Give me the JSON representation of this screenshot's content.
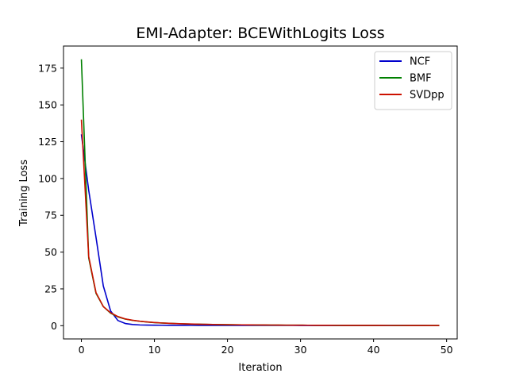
{
  "chart_data": {
    "type": "line",
    "title": "EMI-Adapter: BCEWithLogits Loss",
    "xlabel": "Iteration",
    "ylabel": "Training Loss",
    "xlim": [
      -2.45,
      51.45
    ],
    "ylim": [
      -9.0,
      190.0
    ],
    "xticks": [
      0,
      10,
      20,
      30,
      40,
      50
    ],
    "yticks": [
      0,
      25,
      50,
      75,
      100,
      125,
      150,
      175
    ],
    "grid": false,
    "legend_position": "top-right",
    "x": [
      0,
      1,
      2,
      3,
      4,
      5,
      6,
      7,
      8,
      9,
      10,
      11,
      12,
      13,
      14,
      15,
      16,
      17,
      18,
      19,
      20,
      21,
      22,
      23,
      24,
      25,
      26,
      27,
      28,
      29,
      30,
      31,
      32,
      33,
      34,
      35,
      36,
      37,
      38,
      39,
      40,
      41,
      42,
      43,
      44,
      45,
      46,
      47,
      48,
      49
    ],
    "series": [
      {
        "name": "NCF",
        "color": "#0000cc",
        "values": [
          130,
          92,
          60,
          27,
          10,
          3.5,
          1.5,
          0.8,
          0.5,
          0.4,
          0.35,
          0.3,
          0.28,
          0.26,
          0.25,
          0.24,
          0.23,
          0.22,
          0.21,
          0.2,
          0.2,
          0.19,
          0.19,
          0.18,
          0.18,
          0.17,
          0.17,
          0.16,
          0.16,
          0.16,
          0.15,
          0.15,
          0.15,
          0.14,
          0.14,
          0.14,
          0.13,
          0.13,
          0.13,
          0.13,
          0.12,
          0.12,
          0.12,
          0.12,
          0.11,
          0.11,
          0.11,
          0.11,
          0.1,
          0.1
        ]
      },
      {
        "name": "BMF",
        "color": "#008000",
        "values": [
          181,
          46,
          22,
          13,
          8.5,
          6,
          4.5,
          3.6,
          3,
          2.5,
          2.1,
          1.8,
          1.6,
          1.4,
          1.25,
          1.1,
          1,
          0.9,
          0.82,
          0.75,
          0.68,
          0.62,
          0.57,
          0.53,
          0.49,
          0.45,
          0.42,
          0.39,
          0.36,
          0.34,
          0.32,
          0.3,
          0.28,
          0.26,
          0.25,
          0.23,
          0.22,
          0.21,
          0.2,
          0.19,
          0.18,
          0.17,
          0.16,
          0.15,
          0.15,
          0.14,
          0.13,
          0.13,
          0.12,
          0.12
        ]
      },
      {
        "name": "SVDpp",
        "color": "#cc1100",
        "values": [
          140,
          47,
          22.5,
          13,
          8.8,
          6.2,
          4.6,
          3.7,
          3.05,
          2.55,
          2.15,
          1.85,
          1.62,
          1.42,
          1.27,
          1.12,
          1.02,
          0.92,
          0.84,
          0.77,
          0.7,
          0.64,
          0.58,
          0.54,
          0.5,
          0.46,
          0.43,
          0.4,
          0.37,
          0.35,
          0.33,
          0.31,
          0.29,
          0.27,
          0.26,
          0.24,
          0.23,
          0.22,
          0.21,
          0.2,
          0.19,
          0.18,
          0.17,
          0.16,
          0.16,
          0.15,
          0.14,
          0.14,
          0.13,
          0.13
        ]
      }
    ]
  }
}
